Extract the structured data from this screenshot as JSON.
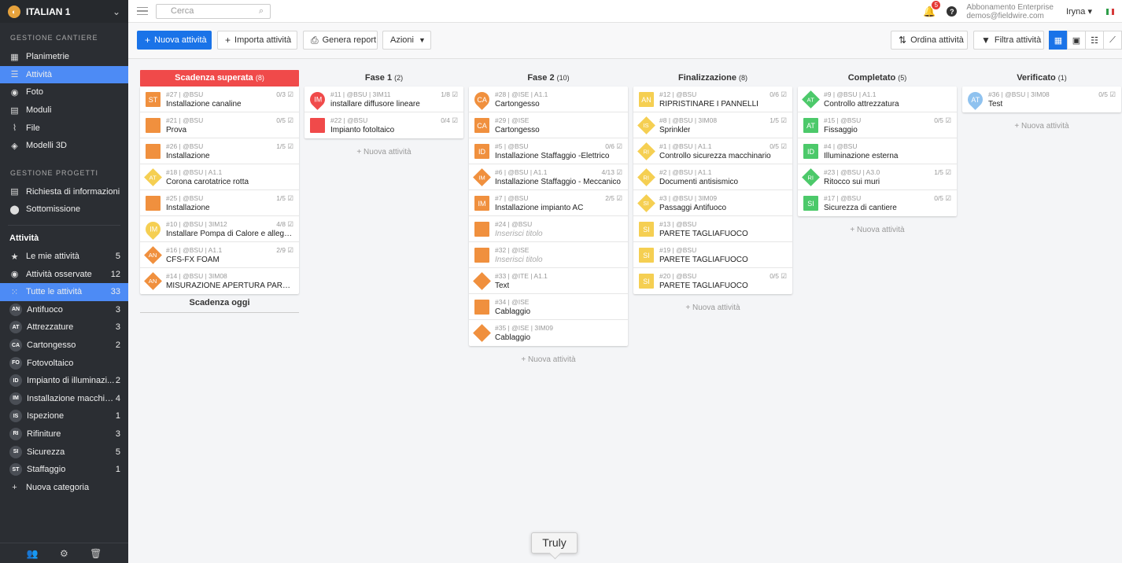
{
  "project": {
    "name": "ITALIAN 1"
  },
  "sidebar": {
    "section_site": "GESTIONE CANTIERE",
    "site_items": [
      {
        "label": "Planimetrie",
        "icon": "plans-icon",
        "glyph": "▦"
      },
      {
        "label": "Attività",
        "icon": "tasks-list-icon",
        "glyph": "☰",
        "active": true
      },
      {
        "label": "Foto",
        "icon": "camera-icon",
        "glyph": "◉"
      },
      {
        "label": "Moduli",
        "icon": "forms-icon",
        "glyph": "▤"
      },
      {
        "label": "File",
        "icon": "paperclip-icon",
        "glyph": "⌇"
      },
      {
        "label": "Modelli 3D",
        "icon": "cube-icon",
        "glyph": "◈"
      }
    ],
    "section_projects": "GESTIONE PROGETTI",
    "project_items": [
      {
        "label": "Richiesta di informazioni",
        "icon": "rfi-icon",
        "glyph": "▤"
      },
      {
        "label": "Sottomissione",
        "icon": "submittal-icon",
        "glyph": "⬤"
      }
    ],
    "tasks_heading": "Attività",
    "task_filters": [
      {
        "label": "Le mie attività",
        "count": "5",
        "icon": "star-icon",
        "glyph": "★"
      },
      {
        "label": "Attività osservate",
        "count": "12",
        "icon": "eye-icon",
        "glyph": "◉"
      },
      {
        "label": "Tutte le attività",
        "count": "33",
        "icon": "grid-icon",
        "glyph": "⁙",
        "active": true
      }
    ],
    "categories": [
      {
        "abbr": "AN",
        "label": "Antifuoco",
        "count": "3"
      },
      {
        "abbr": "AT",
        "label": "Attrezzature",
        "count": "3"
      },
      {
        "abbr": "CA",
        "label": "Cartongesso",
        "count": "2"
      },
      {
        "abbr": "FO",
        "label": "Fotovoltaico",
        "count": ""
      },
      {
        "abbr": "ID",
        "label": "Impianto di illuminazi...",
        "count": "2"
      },
      {
        "abbr": "IM",
        "label": "Installazione macchin...",
        "count": "4"
      },
      {
        "abbr": "IS",
        "label": "Ispezione",
        "count": "1"
      },
      {
        "abbr": "RI",
        "label": "Rifiniture",
        "count": "3"
      },
      {
        "abbr": "SI",
        "label": "Sicurezza",
        "count": "5"
      },
      {
        "abbr": "ST",
        "label": "Staffaggio",
        "count": "1"
      }
    ],
    "new_category": "Nuova categoria"
  },
  "topbar": {
    "search_placeholder": "Cerca",
    "notifications": "5",
    "account_plan": "Abbonamento Enterprise",
    "account_email": "demos@fieldwire.com",
    "user": "Iryna"
  },
  "toolbar": {
    "new_task": "Nuova attività",
    "import": "Importa attività",
    "report": "Genera report",
    "actions": "Azioni",
    "sort": "Ordina attività",
    "filter": "Filtra attività"
  },
  "colors": {
    "orange": "#f0903e",
    "red": "#f04a4a",
    "yellow": "#f5cf52",
    "green": "#4cc96a",
    "lightblue": "#8fc2ef",
    "accent": "#1a73e8"
  },
  "board": {
    "add_label": "+ Nuova attività",
    "due_today": "Scadenza oggi",
    "columns": [
      {
        "title": "Scadenza superata",
        "count": "(8)",
        "overdue": true,
        "cards": [
          {
            "abbr": "ST",
            "shape": "square",
            "color": "orange",
            "meta": "#27 | @BSU",
            "title": "Installazione canaline",
            "check": "0/3 ☑"
          },
          {
            "abbr": "",
            "shape": "square",
            "color": "orange",
            "meta": "#21 | @BSU",
            "title": "Prova",
            "check": "0/5 ☑"
          },
          {
            "abbr": "",
            "shape": "square",
            "color": "orange",
            "meta": "#26 | @BSU",
            "title": "Installazione",
            "check": "1/5 ☑"
          },
          {
            "abbr": "AT",
            "shape": "diamond",
            "color": "yellow",
            "meta": "#18 | @BSU | A1.1",
            "title": "Corona carotatrice rotta",
            "check": ""
          },
          {
            "abbr": "",
            "shape": "square",
            "color": "orange",
            "meta": "#25 | @BSU",
            "title": "Installazione",
            "check": "1/5 ☑"
          },
          {
            "abbr": "IM",
            "shape": "circle",
            "color": "yellow",
            "meta": "#10 | @BSU | 3IM12",
            "title": "Installare Pompa di Calore e allegare foto",
            "check": "4/8 ☑"
          },
          {
            "abbr": "AN",
            "shape": "diamond",
            "color": "orange",
            "meta": "#16 | @BSU | A1.1",
            "title": "CFS-FX FOAM",
            "check": "2/9 ☑"
          },
          {
            "abbr": "AN",
            "shape": "diamond",
            "color": "orange",
            "meta": "#14 | @BSU | 3IM08",
            "title": "MISURAZIONE APERTURA PARETE",
            "check": ""
          }
        ]
      },
      {
        "title": "Fase 1",
        "count": "(2)",
        "cards": [
          {
            "abbr": "IM",
            "shape": "circle",
            "color": "red",
            "meta": "#11 | @BSU | 3IM11",
            "title": "installare diffusore lineare",
            "check": "1/8 ☑"
          },
          {
            "abbr": "",
            "shape": "square",
            "color": "red",
            "meta": "#22 | @BSU",
            "title": "Impianto fotoltaico",
            "check": "0/4 ☑"
          }
        ]
      },
      {
        "title": "Fase 2",
        "count": "(10)",
        "cards": [
          {
            "abbr": "CA",
            "shape": "circle",
            "color": "orange",
            "meta": "#28 | @ISE | A1.1",
            "title": "Cartongesso",
            "check": ""
          },
          {
            "abbr": "CA",
            "shape": "square",
            "color": "orange",
            "meta": "#29 | @ISE",
            "title": "Cartongesso",
            "check": ""
          },
          {
            "abbr": "ID",
            "shape": "square",
            "color": "orange",
            "meta": "#5 | @BSU",
            "title": "Installazione Staffaggio -Elettrico",
            "check": "0/6 ☑"
          },
          {
            "abbr": "IM",
            "shape": "diamond",
            "color": "orange",
            "meta": "#6 | @BSU | A1.1",
            "title": "Installazione Staffaggio - Meccanico",
            "check": "4/13 ☑"
          },
          {
            "abbr": "IM",
            "shape": "square",
            "color": "orange",
            "meta": "#7 | @BSU",
            "title": "Installazione impianto AC",
            "check": "2/5 ☑"
          },
          {
            "abbr": "",
            "shape": "square",
            "color": "orange",
            "meta": "#24 | @BSU",
            "title": "Inserisci titolo",
            "placeholder": true,
            "check": ""
          },
          {
            "abbr": "",
            "shape": "square",
            "color": "orange",
            "meta": "#32 | @ISE",
            "title": "Inserisci titolo",
            "placeholder": true,
            "check": ""
          },
          {
            "abbr": "",
            "shape": "diamond",
            "color": "orange",
            "meta": "#33 | @ITE | A1.1",
            "title": "Text",
            "check": ""
          },
          {
            "abbr": "",
            "shape": "square",
            "color": "orange",
            "meta": "#34 | @ISE",
            "title": "Cablaggio",
            "check": ""
          },
          {
            "abbr": "",
            "shape": "diamond",
            "color": "orange",
            "meta": "#35 | @ISE | 3IM09",
            "title": "Cablaggio",
            "check": ""
          }
        ]
      },
      {
        "title": "Finalizzazione",
        "count": "(8)",
        "cards": [
          {
            "abbr": "AN",
            "shape": "square",
            "color": "yellow",
            "meta": "#12 | @BSU",
            "title": "RIPRISTINARE I PANNELLI",
            "check": "0/6 ☑"
          },
          {
            "abbr": "IS",
            "shape": "diamond",
            "color": "yellow",
            "meta": "#8 | @BSU | 3IM08",
            "title": "Sprinkler",
            "check": "1/5 ☑"
          },
          {
            "abbr": "RI",
            "shape": "diamond",
            "color": "yellow",
            "meta": "#1 | @BSU | A1.1",
            "title": "Controllo sicurezza macchinario",
            "check": "0/5 ☑"
          },
          {
            "abbr": "RI",
            "shape": "diamond",
            "color": "yellow",
            "meta": "#2 | @BSU | A1.1",
            "title": "Documenti antisismico",
            "check": ""
          },
          {
            "abbr": "SI",
            "shape": "diamond",
            "color": "yellow",
            "meta": "#3 | @BSU | 3IM09",
            "title": "Passaggi Antifuoco",
            "check": ""
          },
          {
            "abbr": "SI",
            "shape": "square",
            "color": "yellow",
            "meta": "#13 | @BSU",
            "title": "PARETE TAGLIAFUOCO",
            "check": ""
          },
          {
            "abbr": "SI",
            "shape": "square",
            "color": "yellow",
            "meta": "#19 | @BSU",
            "title": "PARETE TAGLIAFUOCO",
            "check": ""
          },
          {
            "abbr": "SI",
            "shape": "square",
            "color": "yellow",
            "meta": "#20 | @BSU",
            "title": "PARETE TAGLIAFUOCO",
            "check": "0/5 ☑"
          }
        ]
      },
      {
        "title": "Completato",
        "count": "(5)",
        "cards": [
          {
            "abbr": "AT",
            "shape": "diamond",
            "color": "green",
            "meta": "#9 | @BSU | A1.1",
            "title": "Controllo attrezzatura",
            "check": ""
          },
          {
            "abbr": "AT",
            "shape": "square",
            "color": "green",
            "meta": "#15 | @BSU",
            "title": "Fissaggio",
            "check": "0/5 ☑"
          },
          {
            "abbr": "ID",
            "shape": "square",
            "color": "green",
            "meta": "#4 | @BSU",
            "title": "Illuminazione esterna",
            "check": ""
          },
          {
            "abbr": "RI",
            "shape": "diamond",
            "color": "green",
            "meta": "#23 | @BSU | A3.0",
            "title": "Ritocco sui muri",
            "check": "1/5 ☑"
          },
          {
            "abbr": "SI",
            "shape": "square",
            "color": "green",
            "meta": "#17 | @BSU",
            "title": "Sicurezza di cantiere",
            "check": "0/5 ☑"
          }
        ]
      },
      {
        "title": "Verificato",
        "count": "(1)",
        "cards": [
          {
            "abbr": "AT",
            "shape": "circle",
            "color": "lightblue",
            "meta": "#36 | @BSU | 3IM08",
            "title": "Test",
            "check": "0/5 ☑"
          }
        ]
      }
    ]
  },
  "tooltip": "Truly"
}
